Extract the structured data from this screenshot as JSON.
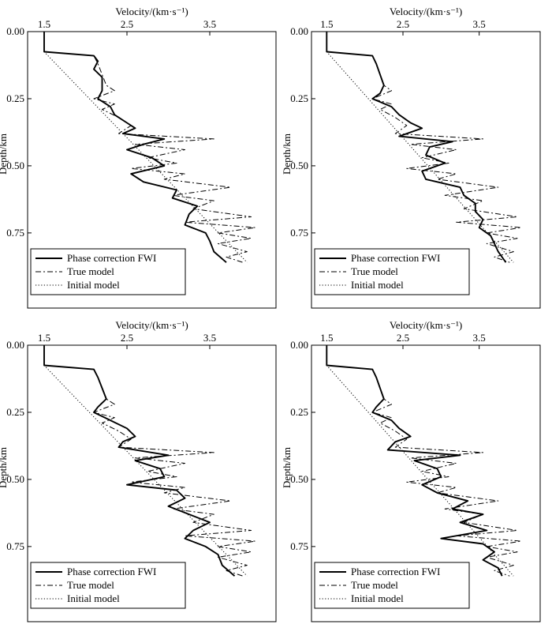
{
  "chart_data": [
    {
      "type": "line",
      "x_axis": {
        "label": "Velocity/(km·s⁻¹)",
        "ticks": [
          1.5,
          2.5,
          3.5
        ],
        "range": [
          1.3,
          4.3
        ],
        "position": "top"
      },
      "y_axis": {
        "label": "Depth/km",
        "ticks": [
          "0.00",
          "0.25",
          "0.50",
          "0.75"
        ],
        "range": [
          0,
          1.03
        ],
        "inverted": true
      },
      "legend_position": "bottom-left",
      "grid": false,
      "series": [
        {
          "name": "Phase correction FWI",
          "style": "solid",
          "depth": [
            0,
            0.075,
            0.09,
            0.11,
            0.14,
            0.17,
            0.19,
            0.22,
            0.25,
            0.28,
            0.31,
            0.34,
            0.36,
            0.38,
            0.4,
            0.42,
            0.44,
            0.47,
            0.5,
            0.53,
            0.56,
            0.59,
            0.62,
            0.65,
            0.68,
            0.72,
            0.75,
            0.78,
            0.82,
            0.86
          ],
          "velocity": [
            1.5,
            1.5,
            2.1,
            2.15,
            2.1,
            2.2,
            2.2,
            2.2,
            2.15,
            2.3,
            2.35,
            2.5,
            2.6,
            2.45,
            2.95,
            2.7,
            2.5,
            2.8,
            2.95,
            2.55,
            2.7,
            3.1,
            3.05,
            3.35,
            3.25,
            3.2,
            3.45,
            3.5,
            3.55,
            3.7
          ]
        },
        {
          "name": "True model",
          "style": "dash-dot",
          "depth": [
            0,
            0.075,
            0.09,
            0.12,
            0.16,
            0.2,
            0.22,
            0.25,
            0.27,
            0.29,
            0.32,
            0.35,
            0.38,
            0.4,
            0.42,
            0.44,
            0.47,
            0.49,
            0.51,
            0.53,
            0.55,
            0.58,
            0.61,
            0.63,
            0.66,
            0.69,
            0.71,
            0.73,
            0.75,
            0.77,
            0.79,
            0.82,
            0.84,
            0.86
          ],
          "velocity": [
            1.5,
            1.5,
            2.1,
            2.15,
            2.2,
            2.25,
            2.35,
            2.1,
            2.35,
            2.2,
            2.4,
            2.55,
            2.4,
            3.55,
            2.6,
            3.2,
            2.75,
            3.1,
            2.55,
            3.2,
            2.95,
            3.75,
            3.05,
            3.55,
            3.3,
            4.0,
            3.2,
            4.05,
            3.6,
            4.0,
            3.6,
            3.95,
            3.7,
            3.9
          ]
        },
        {
          "name": "Initial model",
          "style": "dotted",
          "depth": [
            0,
            0.075,
            0.86
          ],
          "velocity": [
            1.5,
            1.5,
            3.95
          ]
        }
      ]
    },
    {
      "type": "line",
      "x_axis": {
        "label": "Velocity/(km·s⁻¹)",
        "ticks": [
          1.5,
          2.5,
          3.5
        ],
        "range": [
          1.3,
          4.3
        ],
        "position": "top"
      },
      "y_axis": {
        "label": "Depth/km",
        "ticks": [
          "0.00",
          "0.25",
          "0.50",
          "0.75"
        ],
        "range": [
          0,
          1.03
        ],
        "inverted": true
      },
      "legend_position": "bottom-left",
      "grid": false,
      "series": [
        {
          "name": "Phase correction FWI",
          "style": "solid",
          "depth": [
            0,
            0.075,
            0.09,
            0.12,
            0.16,
            0.2,
            0.23,
            0.25,
            0.28,
            0.31,
            0.34,
            0.36,
            0.39,
            0.41,
            0.43,
            0.46,
            0.49,
            0.52,
            0.55,
            0.58,
            0.61,
            0.64,
            0.67,
            0.7,
            0.73,
            0.76,
            0.79,
            0.82,
            0.86
          ],
          "velocity": [
            1.5,
            1.5,
            2.1,
            2.15,
            2.2,
            2.25,
            2.2,
            2.1,
            2.35,
            2.45,
            2.6,
            2.75,
            2.45,
            3.15,
            2.85,
            2.8,
            3.05,
            2.75,
            2.8,
            3.25,
            3.3,
            3.45,
            3.45,
            3.55,
            3.5,
            3.65,
            3.7,
            3.75,
            3.85
          ]
        },
        {
          "name": "True model",
          "style": "dash-dot",
          "depth": [
            0,
            0.075,
            0.09,
            0.12,
            0.16,
            0.2,
            0.22,
            0.25,
            0.27,
            0.29,
            0.32,
            0.35,
            0.38,
            0.4,
            0.42,
            0.44,
            0.47,
            0.49,
            0.51,
            0.53,
            0.55,
            0.58,
            0.61,
            0.63,
            0.66,
            0.69,
            0.71,
            0.73,
            0.75,
            0.77,
            0.79,
            0.82,
            0.84,
            0.86
          ],
          "velocity": [
            1.5,
            1.5,
            2.1,
            2.15,
            2.2,
            2.25,
            2.35,
            2.1,
            2.35,
            2.2,
            2.4,
            2.55,
            2.4,
            3.55,
            2.6,
            3.2,
            2.75,
            3.1,
            2.55,
            3.2,
            2.95,
            3.75,
            3.05,
            3.55,
            3.3,
            4.0,
            3.2,
            4.05,
            3.6,
            4.0,
            3.6,
            3.95,
            3.7,
            3.9
          ]
        },
        {
          "name": "Initial model",
          "style": "dotted",
          "depth": [
            0,
            0.075,
            0.86
          ],
          "velocity": [
            1.5,
            1.5,
            3.95
          ]
        }
      ]
    },
    {
      "type": "line",
      "x_axis": {
        "label": "Velocity/(km·s⁻¹)",
        "ticks": [
          1.5,
          2.5,
          3.5
        ],
        "range": [
          1.3,
          4.3
        ],
        "position": "top"
      },
      "y_axis": {
        "label": "Depth/km",
        "ticks": [
          "0.00",
          "0.25",
          "0.50",
          "0.75"
        ],
        "range": [
          0,
          1.03
        ],
        "inverted": true
      },
      "legend_position": "bottom-left",
      "grid": false,
      "series": [
        {
          "name": "Phase correction FWI",
          "style": "solid",
          "depth": [
            0,
            0.075,
            0.09,
            0.12,
            0.16,
            0.2,
            0.23,
            0.25,
            0.28,
            0.31,
            0.34,
            0.36,
            0.38,
            0.41,
            0.43,
            0.46,
            0.49,
            0.52,
            0.54,
            0.57,
            0.6,
            0.63,
            0.66,
            0.69,
            0.72,
            0.75,
            0.78,
            0.82,
            0.86
          ],
          "velocity": [
            1.5,
            1.5,
            2.1,
            2.15,
            2.2,
            2.25,
            2.15,
            2.1,
            2.3,
            2.5,
            2.6,
            2.45,
            2.4,
            3.0,
            2.6,
            2.9,
            2.95,
            2.5,
            3.1,
            3.2,
            3.0,
            3.25,
            3.5,
            3.3,
            3.2,
            3.45,
            3.6,
            3.65,
            3.8
          ]
        },
        {
          "name": "True model",
          "style": "dash-dot",
          "depth": [
            0,
            0.075,
            0.09,
            0.12,
            0.16,
            0.2,
            0.22,
            0.25,
            0.27,
            0.29,
            0.32,
            0.35,
            0.38,
            0.4,
            0.42,
            0.44,
            0.47,
            0.49,
            0.51,
            0.53,
            0.55,
            0.58,
            0.61,
            0.63,
            0.66,
            0.69,
            0.71,
            0.73,
            0.75,
            0.77,
            0.79,
            0.82,
            0.84,
            0.86
          ],
          "velocity": [
            1.5,
            1.5,
            2.1,
            2.15,
            2.2,
            2.25,
            2.35,
            2.1,
            2.35,
            2.2,
            2.4,
            2.55,
            2.4,
            3.55,
            2.6,
            3.2,
            2.75,
            3.1,
            2.55,
            3.2,
            2.95,
            3.75,
            3.05,
            3.55,
            3.3,
            4.0,
            3.2,
            4.05,
            3.6,
            4.0,
            3.6,
            3.95,
            3.7,
            3.9
          ]
        },
        {
          "name": "Initial model",
          "style": "dotted",
          "depth": [
            0,
            0.075,
            0.86
          ],
          "velocity": [
            1.5,
            1.5,
            3.95
          ]
        }
      ]
    },
    {
      "type": "line",
      "x_axis": {
        "label": "Velocity/(km·s⁻¹)",
        "ticks": [
          1.5,
          2.5,
          3.5
        ],
        "range": [
          1.3,
          4.3
        ],
        "position": "top"
      },
      "y_axis": {
        "label": "Depth/km",
        "ticks": [
          "0.00",
          "0.25",
          "0.50",
          "0.75"
        ],
        "range": [
          0,
          1.03
        ],
        "inverted": true
      },
      "legend_position": "bottom-left",
      "grid": false,
      "series": [
        {
          "name": "Phase correction FWI",
          "style": "solid",
          "depth": [
            0,
            0.075,
            0.09,
            0.12,
            0.16,
            0.2,
            0.23,
            0.25,
            0.28,
            0.31,
            0.34,
            0.36,
            0.39,
            0.41,
            0.43,
            0.46,
            0.49,
            0.52,
            0.55,
            0.58,
            0.61,
            0.63,
            0.66,
            0.69,
            0.72,
            0.74,
            0.77,
            0.8,
            0.83,
            0.86
          ],
          "velocity": [
            1.5,
            1.5,
            2.1,
            2.15,
            2.2,
            2.25,
            2.15,
            2.1,
            2.35,
            2.45,
            2.6,
            2.4,
            2.3,
            3.25,
            2.65,
            2.95,
            3.0,
            2.75,
            2.95,
            3.35,
            3.15,
            3.55,
            3.25,
            3.6,
            3.0,
            3.55,
            3.7,
            3.55,
            3.75,
            3.8
          ]
        },
        {
          "name": "True model",
          "style": "dash-dot",
          "depth": [
            0,
            0.075,
            0.09,
            0.12,
            0.16,
            0.2,
            0.22,
            0.25,
            0.27,
            0.29,
            0.32,
            0.35,
            0.38,
            0.4,
            0.42,
            0.44,
            0.47,
            0.49,
            0.51,
            0.53,
            0.55,
            0.58,
            0.61,
            0.63,
            0.66,
            0.69,
            0.71,
            0.73,
            0.75,
            0.77,
            0.79,
            0.82,
            0.84,
            0.86
          ],
          "velocity": [
            1.5,
            1.5,
            2.1,
            2.15,
            2.2,
            2.25,
            2.35,
            2.1,
            2.35,
            2.2,
            2.4,
            2.55,
            2.4,
            3.55,
            2.6,
            3.2,
            2.75,
            3.1,
            2.55,
            3.2,
            2.95,
            3.75,
            3.05,
            3.55,
            3.3,
            4.0,
            3.2,
            4.05,
            3.6,
            4.0,
            3.6,
            3.95,
            3.7,
            3.9
          ]
        },
        {
          "name": "Initial model",
          "style": "dotted",
          "depth": [
            0,
            0.075,
            0.86
          ],
          "velocity": [
            1.5,
            1.5,
            3.95
          ]
        }
      ]
    }
  ]
}
